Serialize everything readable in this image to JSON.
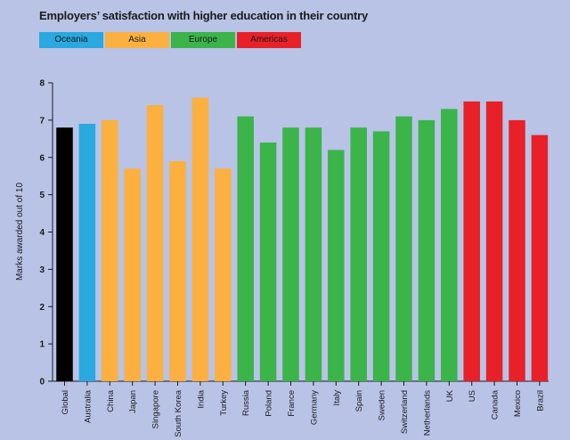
{
  "title": "Employers’ satisfaction with higher education in their country",
  "legend": [
    {
      "label": "Oceania",
      "color": "#2aa8e0"
    },
    {
      "label": "Asia",
      "color": "#fbb040"
    },
    {
      "label": "Europe",
      "color": "#3bb44a"
    },
    {
      "label": "Americas",
      "color": "#e82128"
    }
  ],
  "chart_data": {
    "type": "bar",
    "title": "Employers’ satisfaction with higher education in their country",
    "ylabel": "Marks awarded out of 10",
    "xlabel": "",
    "ylim": [
      0,
      8
    ],
    "yticks": [
      "0",
      "1",
      "2",
      "3",
      "4",
      "5",
      "6",
      "7",
      "8"
    ],
    "grid": false,
    "legend_position": "top-left",
    "categories": [
      "Global",
      "Australia",
      "China",
      "Japan",
      "Singapore",
      "South Korea",
      "India",
      "Turkey",
      "Russia",
      "Poland",
      "France",
      "Germany",
      "Italy",
      "Spain",
      "Sweden",
      "Switzerland",
      "Netherlands",
      "UK",
      "US",
      "Canada",
      "Mexico",
      "Brazil"
    ],
    "values": [
      6.8,
      6.9,
      7.0,
      5.7,
      7.4,
      5.9,
      7.6,
      5.7,
      7.1,
      6.4,
      6.8,
      6.8,
      6.2,
      6.8,
      6.7,
      7.1,
      7.0,
      7.3,
      7.5,
      7.5,
      7.0,
      6.6
    ],
    "colors": [
      "#000000",
      "#2aa8e0",
      "#fbb040",
      "#fbb040",
      "#fbb040",
      "#fbb040",
      "#fbb040",
      "#fbb040",
      "#3bb44a",
      "#3bb44a",
      "#3bb44a",
      "#3bb44a",
      "#3bb44a",
      "#3bb44a",
      "#3bb44a",
      "#3bb44a",
      "#3bb44a",
      "#3bb44a",
      "#e82128",
      "#e82128",
      "#e82128",
      "#e82128"
    ],
    "region": [
      "Global",
      "Oceania",
      "Asia",
      "Asia",
      "Asia",
      "Asia",
      "Asia",
      "Asia",
      "Europe",
      "Europe",
      "Europe",
      "Europe",
      "Europe",
      "Europe",
      "Europe",
      "Europe",
      "Europe",
      "Europe",
      "Americas",
      "Americas",
      "Americas",
      "Americas"
    ]
  }
}
